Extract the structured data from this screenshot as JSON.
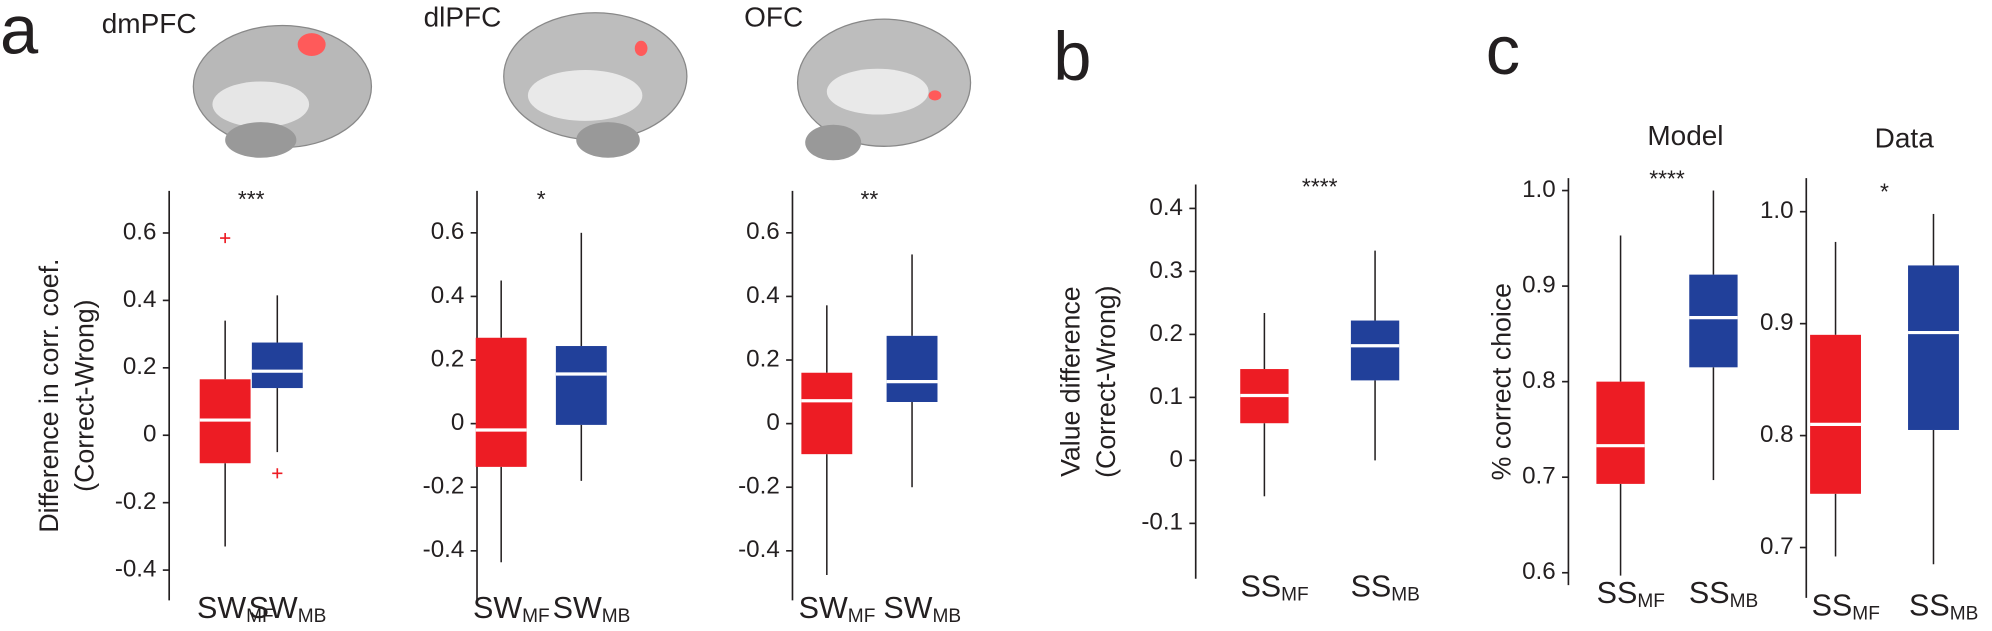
{
  "chart_data": [
    {
      "type": "box",
      "panel_label": "a",
      "title": "dmPFC",
      "annotation": "***",
      "ylabel": [
        "Difference in corr. coef.",
        "(Correct-Wrong)"
      ],
      "categories": [
        [
          "SW",
          "MF"
        ],
        [
          "SW",
          "MB"
        ]
      ],
      "ylim": [
        -0.49,
        0.725
      ],
      "yticks": [
        -0.4,
        -0.2,
        0,
        0.2,
        0.4,
        0.6
      ],
      "series": [
        {
          "color": "#ed1c24",
          "whislo": -0.33,
          "q1": -0.083,
          "med": 0.045,
          "q3": 0.166,
          "whishi": 0.34,
          "fliers": [
            0.585
          ]
        },
        {
          "color": "#21409a",
          "whislo": -0.05,
          "q1": 0.14,
          "med": 0.19,
          "q3": 0.275,
          "whishi": 0.415,
          "fliers": [
            -0.113
          ]
        }
      ]
    },
    {
      "type": "box",
      "title": "dlPFC",
      "annotation": "*",
      "categories": [
        [
          "SW",
          "MF"
        ],
        [
          "SW",
          "MB"
        ]
      ],
      "ylim": [
        -0.556,
        0.732
      ],
      "yticks": [
        -0.4,
        -0.2,
        0,
        0.2,
        0.4,
        0.6
      ],
      "series": [
        {
          "color": "#ed1c24",
          "whislo": -0.436,
          "q1": -0.136,
          "med": -0.02,
          "q3": 0.27,
          "whishi": 0.45,
          "fliers": []
        },
        {
          "color": "#21409a",
          "whislo": -0.18,
          "q1": -0.004,
          "med": 0.156,
          "q3": 0.244,
          "whishi": 0.6,
          "fliers": []
        }
      ]
    },
    {
      "type": "box",
      "title": "OFC",
      "annotation": "**",
      "categories": [
        [
          "SW",
          "MF"
        ],
        [
          "SW",
          "MB"
        ]
      ],
      "ylim": [
        -0.556,
        0.732
      ],
      "yticks": [
        -0.4,
        -0.2,
        0,
        0.2,
        0.4,
        0.6
      ],
      "series": [
        {
          "color": "#ed1c24",
          "whislo": -0.476,
          "q1": -0.096,
          "med": 0.072,
          "q3": 0.16,
          "whishi": 0.372,
          "fliers": []
        },
        {
          "color": "#21409a",
          "whislo": -0.2,
          "q1": 0.068,
          "med": 0.132,
          "q3": 0.276,
          "whishi": 0.532,
          "fliers": []
        }
      ]
    },
    {
      "type": "box",
      "panel_label": "b",
      "annotation": "****",
      "ylabel": [
        "Value difference",
        "(Correct-Wrong)"
      ],
      "categories": [
        [
          "SS",
          "MF"
        ],
        [
          "SS",
          "MB"
        ]
      ],
      "ylim": [
        -0.188,
        0.438
      ],
      "yticks": [
        -0.1,
        0,
        0.1,
        0.2,
        0.3,
        0.4
      ],
      "series": [
        {
          "color": "#ed1c24",
          "whislo": -0.057,
          "q1": 0.059,
          "med": 0.103,
          "q3": 0.145,
          "whishi": 0.234,
          "fliers": []
        },
        {
          "color": "#21409a",
          "whislo": 0,
          "q1": 0.127,
          "med": 0.182,
          "q3": 0.222,
          "whishi": 0.333,
          "fliers": []
        }
      ]
    },
    {
      "type": "box",
      "panel_label": "c",
      "title": "Model",
      "annotation": "****",
      "ylabel": [
        "% correct choice"
      ],
      "categories": [
        [
          "SS",
          "MF"
        ],
        [
          "SS",
          "MB"
        ]
      ],
      "ylim": [
        0.587,
        1.013
      ],
      "yticks": [
        0.6,
        0.7,
        0.8,
        0.9,
        {
          "value": 1,
          "label": "1.0"
        }
      ],
      "series": [
        {
          "color": "#ed1c24",
          "whislo": 0.597,
          "q1": 0.693,
          "med": 0.733,
          "q3": 0.8,
          "whishi": 0.953,
          "fliers": []
        },
        {
          "color": "#21409a",
          "whislo": 0.697,
          "q1": 0.815,
          "med": 0.867,
          "q3": 0.912,
          "whishi": 1,
          "fliers": []
        }
      ]
    },
    {
      "type": "box",
      "title": "Data",
      "annotation": "*",
      "categories": [
        [
          "SS",
          "MF"
        ],
        [
          "SS",
          "MB"
        ]
      ],
      "ylim": [
        0.655,
        1.03
      ],
      "yticks": [
        0.7,
        0.8,
        0.9,
        {
          "value": 1,
          "label": "1.0"
        }
      ],
      "series": [
        {
          "color": "#ed1c24",
          "whislo": 0.692,
          "q1": 0.748,
          "med": 0.81,
          "q3": 0.89,
          "whishi": 0.973,
          "fliers": []
        },
        {
          "color": "#21409a",
          "whislo": 0.685,
          "q1": 0.805,
          "med": 0.892,
          "q3": 0.952,
          "whishi": 0.998,
          "fliers": []
        }
      ]
    }
  ]
}
